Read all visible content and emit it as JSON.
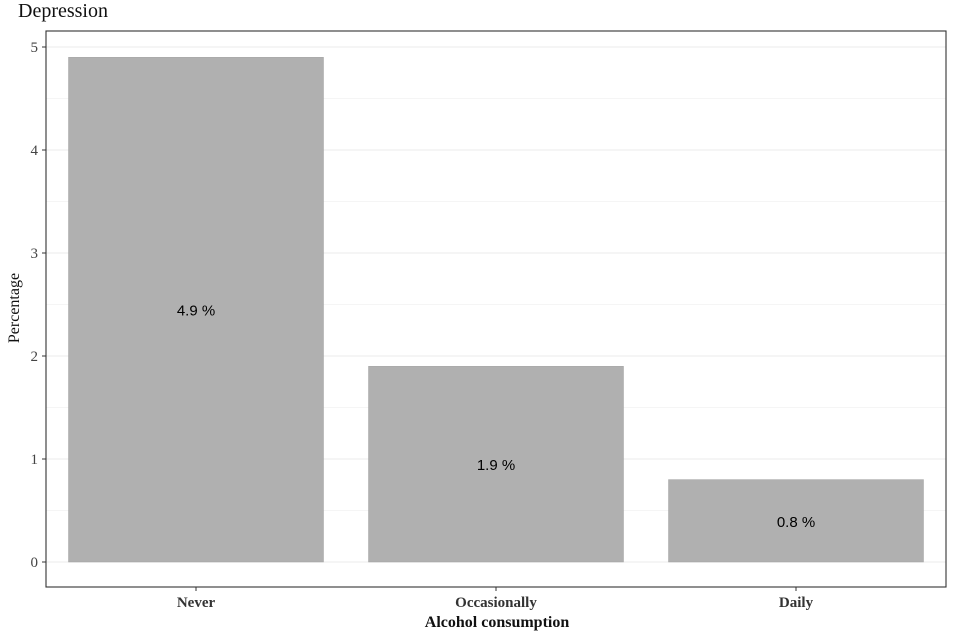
{
  "chart_data": {
    "type": "bar",
    "title": "Depression",
    "xlabel": "Alcohol consumption",
    "ylabel": "Percentage",
    "categories": [
      "Never",
      "Occasionally",
      "Daily"
    ],
    "values": [
      4.9,
      1.9,
      0.8
    ],
    "data_labels": [
      "4.9 %",
      "1.9 %",
      "0.8 %"
    ],
    "ylim": [
      0,
      5.12
    ],
    "yticks": [
      0,
      1,
      2,
      3,
      4,
      5
    ],
    "ytick_labels": [
      "0",
      "1",
      "2",
      "3",
      "4",
      "5"
    ],
    "grid": true,
    "legend": "none"
  },
  "colors": {
    "bar": "#b0b0b0",
    "grid": "#ebebeb",
    "panel_border": "#333333",
    "text": "#222222"
  }
}
